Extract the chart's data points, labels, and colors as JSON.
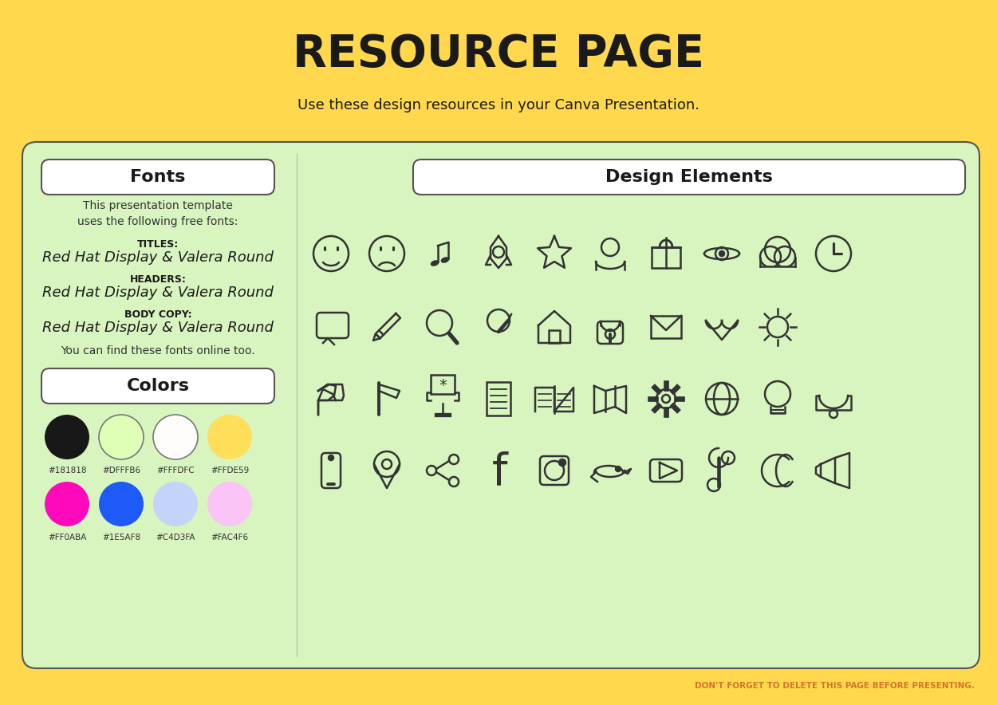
{
  "bg_color": "#FFD84D",
  "panel_color": "#D8F5C0",
  "panel_border": "#555555",
  "title": "RESOURCE PAGE",
  "subtitle": "Use these design resources in your Canva Presentation.",
  "fonts_header": "Fonts",
  "fonts_text1": "This presentation template\nuses the following free fonts:",
  "fonts_titles_label": "TITLES:",
  "fonts_titles_value": "Red Hat Display & Valera Round",
  "fonts_headers_label": "HEADERS:",
  "fonts_headers_value": "Red Hat Display & Valera Round",
  "fonts_body_label": "BODY COPY:",
  "fonts_body_value": "Red Hat Display & Valera Round",
  "fonts_footer": "You can find these fonts online too.",
  "colors_header": "Colors",
  "color_swatches": [
    {
      "color": "#181818",
      "label": "#181818",
      "outline": false
    },
    {
      "color": "#DFFFB6",
      "label": "#DFFFB6",
      "outline": true
    },
    {
      "color": "#FFFDFC",
      "label": "#FFFDFC",
      "outline": true
    },
    {
      "color": "#FFDE59",
      "label": "#FFDE59",
      "outline": false
    },
    {
      "color": "#FF0ABA",
      "label": "#FF0ABA",
      "outline": false
    },
    {
      "color": "#1E5AF8",
      "label": "#1E5AF8",
      "outline": false
    },
    {
      "color": "#C4D3FA",
      "label": "#C4D3FA",
      "outline": false
    },
    {
      "color": "#FAC4F6",
      "label": "#FAC4F6",
      "outline": false
    }
  ],
  "design_elements_header": "Design Elements",
  "footer_text": "DON'T FORGET TO DELETE THIS PAGE BEFORE PRESENTING.",
  "footer_color": "#D4732A",
  "icon_color": "#333333",
  "icon_lw": 1.8
}
